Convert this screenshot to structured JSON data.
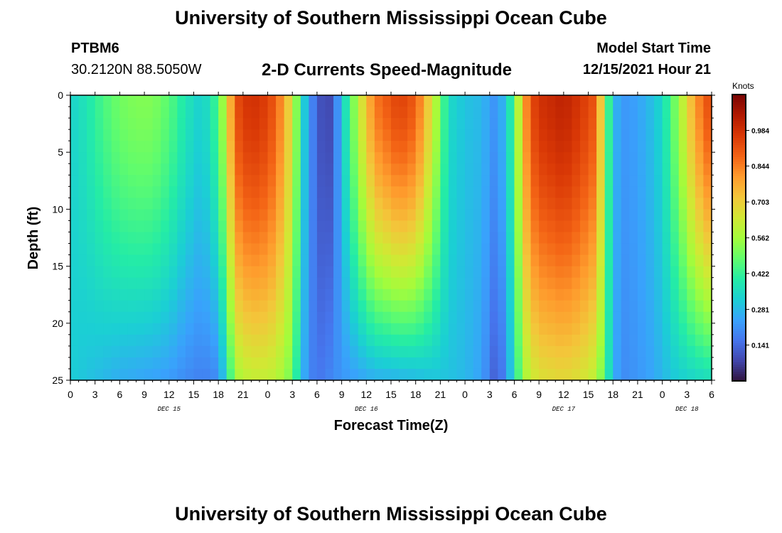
{
  "header": {
    "title": "University of Southern Mississippi Ocean Cube",
    "station": "PTBM6",
    "coordinates": "30.2120N  88.5050W",
    "plot_title": "2-D Currents Speed-Magnitude",
    "model_start_label": "Model Start Time",
    "model_start_value": "12/15/2021 Hour 21"
  },
  "footer": {
    "title": "University of Southern Mississippi Ocean Cube"
  },
  "chart_data": {
    "type": "heatmap",
    "title": "2-D Currents Speed-Magnitude",
    "xlabel": "Forecast Time(Z)",
    "ylabel": "Depth (ft)",
    "x_range_hours": [
      0,
      78
    ],
    "y_range": [
      0,
      25
    ],
    "y_ticks": [
      0,
      5,
      10,
      15,
      20,
      25
    ],
    "x_tick_labels": [
      "0",
      "3",
      "6",
      "9",
      "12",
      "15",
      "18",
      "21",
      "0",
      "3",
      "6",
      "9",
      "12",
      "15",
      "18",
      "21",
      "0",
      "3",
      "6",
      "9",
      "12",
      "15",
      "18",
      "21",
      "0",
      "3",
      "6"
    ],
    "date_labels": [
      {
        "label": "DEC 15",
        "hour": 12
      },
      {
        "label": "DEC 16",
        "hour": 36
      },
      {
        "label": "DEC 17",
        "hour": 60
      },
      {
        "label": "DEC 18",
        "hour": 75
      }
    ],
    "colorbar": {
      "unit": "Knots",
      "min": 0.0,
      "max": 1.125,
      "ticks": [
        0.141,
        0.281,
        0.422,
        0.562,
        0.703,
        0.844,
        0.984
      ],
      "colors": [
        "#30123b",
        "#4145ab",
        "#4675ed",
        "#39a2fc",
        "#1bcfd4",
        "#24eca6",
        "#61fc6c",
        "#a4fc3b",
        "#d1e834",
        "#f3c63a",
        "#fe9b2d",
        "#f36315",
        "#d93806",
        "#b11901",
        "#7a0403"
      ]
    },
    "speed_profile": {
      "hours": [
        0,
        2,
        4,
        6,
        8,
        10,
        12,
        14,
        16,
        18,
        19,
        20,
        21,
        23,
        25,
        27,
        28,
        29,
        30,
        31,
        32,
        33,
        35,
        37,
        40,
        42,
        44,
        46,
        48,
        50,
        52,
        54,
        55,
        56,
        57,
        60,
        62,
        64,
        65,
        66,
        67,
        69,
        71,
        72,
        74,
        76,
        78
      ],
      "surface": [
        0.33,
        0.38,
        0.45,
        0.5,
        0.52,
        0.52,
        0.47,
        0.38,
        0.32,
        0.45,
        0.65,
        0.9,
        0.97,
        0.98,
        0.9,
        0.65,
        0.4,
        0.22,
        0.14,
        0.06,
        0.12,
        0.3,
        0.6,
        0.85,
        0.95,
        0.9,
        0.65,
        0.35,
        0.3,
        0.28,
        0.2,
        0.45,
        0.75,
        0.92,
        0.98,
        1.02,
        0.97,
        0.9,
        0.55,
        0.3,
        0.22,
        0.24,
        0.3,
        0.35,
        0.55,
        0.8,
        0.95
      ],
      "bottom": [
        0.32,
        0.3,
        0.28,
        0.26,
        0.25,
        0.24,
        0.23,
        0.2,
        0.18,
        0.2,
        0.35,
        0.55,
        0.6,
        0.62,
        0.6,
        0.5,
        0.3,
        0.2,
        0.16,
        0.18,
        0.2,
        0.22,
        0.24,
        0.26,
        0.27,
        0.28,
        0.3,
        0.3,
        0.28,
        0.24,
        0.1,
        0.35,
        0.55,
        0.62,
        0.66,
        0.68,
        0.66,
        0.6,
        0.45,
        0.28,
        0.2,
        0.22,
        0.25,
        0.28,
        0.32,
        0.34,
        0.36
      ]
    }
  }
}
